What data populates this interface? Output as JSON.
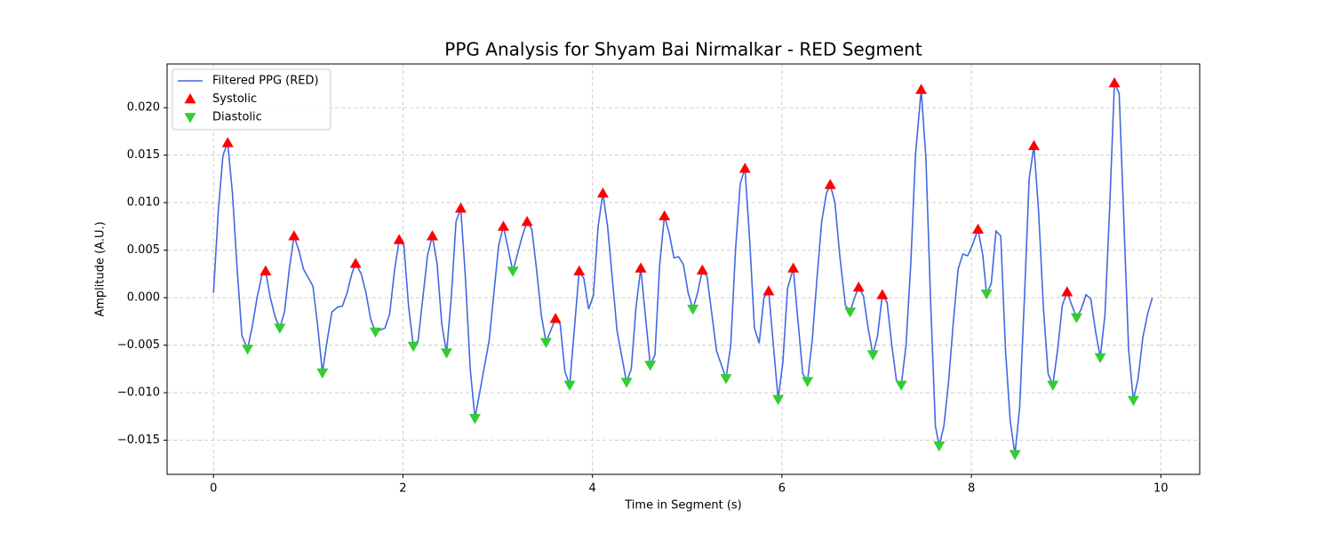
{
  "chart_data": {
    "type": "line",
    "title": "PPG Analysis for Shyam Bai Nirmalkar - RED Segment",
    "x_label": "Time in Segment (s)",
    "y_label": "Amplitude (A.U.)",
    "xlim": [
      -0.49,
      10.41
    ],
    "ylim": [
      -0.0186,
      0.0246
    ],
    "xticks": [
      0,
      2,
      4,
      6,
      8,
      10
    ],
    "yticks": [
      {
        "value": -0.015,
        "label": "−0.015"
      },
      {
        "value": -0.01,
        "label": "−0.010"
      },
      {
        "value": -0.005,
        "label": "−0.005"
      },
      {
        "value": 0,
        "label": "0.000"
      },
      {
        "value": 0.005,
        "label": "0.005"
      },
      {
        "value": 0.01,
        "label": "0.010"
      },
      {
        "value": 0.015,
        "label": "0.015"
      },
      {
        "value": 0.02,
        "label": "0.020"
      }
    ],
    "grid": true,
    "legend": "upper left",
    "series": [
      {
        "name": "Filtered PPG (RED)",
        "color": "#4169e1",
        "marker": "line",
        "x": [
          0,
          0.05,
          0.1,
          0.15,
          0.2,
          0.25,
          0.3,
          0.36,
          0.41,
          0.46,
          0.51,
          0.55,
          0.6,
          0.65,
          0.7,
          0.75,
          0.8,
          0.85,
          0.9,
          0.95,
          1.05,
          1.1,
          1.15,
          1.2,
          1.25,
          1.31,
          1.36,
          1.41,
          1.46,
          1.5,
          1.56,
          1.61,
          1.66,
          1.71,
          1.76,
          1.81,
          1.86,
          1.91,
          1.96,
          2.01,
          2.06,
          2.11,
          2.16,
          2.21,
          2.26,
          2.31,
          2.36,
          2.41,
          2.46,
          2.51,
          2.56,
          2.61,
          2.66,
          2.71,
          2.76,
          2.91,
          3.01,
          3.06,
          3.16,
          3.26,
          3.31,
          3.36,
          3.41,
          3.46,
          3.51,
          3.61,
          3.66,
          3.71,
          3.76,
          3.86,
          3.91,
          3.96,
          4.01,
          4.06,
          4.11,
          4.16,
          4.26,
          4.36,
          4.41,
          4.46,
          4.51,
          4.56,
          4.61,
          4.66,
          4.71,
          4.76,
          4.81,
          4.86,
          4.91,
          4.96,
          5.01,
          5.06,
          5.11,
          5.16,
          5.21,
          5.31,
          5.41,
          5.46,
          5.51,
          5.56,
          5.61,
          5.66,
          5.71,
          5.76,
          5.81,
          5.86,
          5.96,
          6.01,
          6.06,
          6.12,
          6.17,
          6.22,
          6.27,
          6.32,
          6.37,
          6.42,
          6.47,
          6.51,
          6.56,
          6.61,
          6.67,
          6.72,
          6.76,
          6.81,
          6.86,
          6.91,
          6.96,
          7.01,
          7.06,
          7.11,
          7.16,
          7.21,
          7.26,
          7.31,
          7.36,
          7.41,
          7.47,
          7.52,
          7.57,
          7.62,
          7.66,
          7.71,
          7.76,
          7.81,
          7.86,
          7.91,
          7.96,
          8.01,
          8.07,
          8.12,
          8.16,
          8.21,
          8.26,
          8.31,
          8.36,
          8.41,
          8.46,
          8.51,
          8.56,
          8.61,
          8.66,
          8.71,
          8.76,
          8.81,
          8.86,
          8.91,
          8.96,
          9.01,
          9.06,
          9.11,
          9.16,
          9.21,
          9.26,
          9.31,
          9.36,
          9.41,
          9.46,
          9.51,
          9.56,
          9.61,
          9.66,
          9.71,
          9.76,
          9.81,
          9.86,
          9.91
        ],
        "values": [
          0.0005,
          0.009,
          0.015,
          0.0163,
          0.011,
          0.003,
          -0.004,
          -0.0054,
          -0.003,
          0,
          0.0023,
          0.0028,
          0,
          -0.002,
          -0.0032,
          -0.0015,
          0.003,
          0.0065,
          0.005,
          0.003,
          0.0012,
          -0.003,
          -0.0079,
          -0.0045,
          -0.0015,
          -0.001,
          -0.0009,
          0.0005,
          0.0025,
          0.0036,
          0.0025,
          0.0005,
          -0.0023,
          -0.0036,
          -0.0034,
          -0.0032,
          -0.0017,
          0.0028,
          0.0061,
          0.0055,
          -0.001,
          -0.0051,
          -0.0045,
          0,
          0.0045,
          0.0065,
          0.0036,
          -0.0028,
          -0.0058,
          0,
          0.008,
          0.0094,
          0.002,
          -0.0075,
          -0.0127,
          -0.0045,
          0.0055,
          0.0075,
          0.0028,
          0.0065,
          0.008,
          0.0072,
          0.003,
          -0.0018,
          -0.0047,
          -0.0022,
          -0.0028,
          -0.0078,
          -0.0092,
          0.0028,
          0.002,
          -0.0012,
          0.0002,
          0.0075,
          0.011,
          0.0075,
          -0.0035,
          -0.0089,
          -0.0075,
          -0.001,
          0.0031,
          -0.002,
          -0.0071,
          -0.006,
          0.0035,
          0.0086,
          0.0068,
          0.0042,
          0.0043,
          0.0035,
          0.0005,
          -0.0012,
          0.0005,
          0.0029,
          0.0022,
          -0.0056,
          -0.0085,
          -0.005,
          0.005,
          0.012,
          0.0136,
          0.006,
          -0.0032,
          -0.0048,
          0,
          0.0007,
          -0.0107,
          -0.0068,
          0.001,
          0.0031,
          -0.0025,
          -0.008,
          -0.0088,
          -0.0045,
          0.002,
          0.008,
          0.011,
          0.0119,
          0.01,
          0.0045,
          -0.0008,
          -0.0015,
          -0.0002,
          0.0011,
          0.0002,
          -0.0032,
          -0.006,
          -0.004,
          0.0003,
          -0.0005,
          -0.005,
          -0.0088,
          -0.0092,
          -0.005,
          0.0035,
          0.015,
          0.0219,
          0.0147,
          -0.0005,
          -0.0135,
          -0.0156,
          -0.0135,
          -0.0088,
          -0.0025,
          0.003,
          0.0046,
          0.0044,
          0.0055,
          0.0072,
          0.0045,
          0.0004,
          0.0015,
          0.007,
          0.0065,
          -0.0055,
          -0.013,
          -0.0165,
          -0.0115,
          0,
          0.0125,
          0.016,
          0.009,
          -0.001,
          -0.008,
          -0.0092,
          -0.0055,
          -0.0008,
          0.0006,
          -0.0008,
          -0.0021,
          -0.0012,
          0.0003,
          -0.0001,
          -0.0035,
          -0.0063,
          -0.0018,
          0.0095,
          0.0226,
          0.0215,
          0.008,
          -0.0055,
          -0.0108,
          -0.0085,
          -0.0042,
          -0.0017,
          0
        ]
      },
      {
        "name": "Systolic",
        "color": "#ff0000",
        "marker": "triangle-up",
        "x": [
          0.15,
          0.55,
          0.85,
          1.5,
          1.96,
          2.31,
          2.61,
          3.06,
          3.31,
          3.61,
          3.86,
          4.11,
          4.51,
          4.76,
          5.16,
          5.61,
          5.86,
          6.12,
          6.51,
          6.81,
          7.06,
          7.47,
          8.07,
          8.66,
          9.01,
          9.51
        ],
        "values": [
          0.0163,
          0.0028,
          0.0065,
          0.0036,
          0.0061,
          0.0065,
          0.0094,
          0.0075,
          0.008,
          -0.0022,
          0.0028,
          0.011,
          0.0031,
          0.0086,
          0.0029,
          0.0136,
          0.0007,
          0.0031,
          0.0119,
          0.0011,
          0.0003,
          0.0219,
          0.0072,
          0.016,
          0.0006,
          0.0226
        ]
      },
      {
        "name": "Diastolic",
        "color": "#32cd32",
        "marker": "triangle-down",
        "x": [
          0.36,
          0.7,
          1.15,
          1.71,
          2.11,
          2.46,
          2.76,
          3.16,
          3.51,
          3.76,
          4.36,
          4.61,
          5.06,
          5.41,
          5.96,
          6.27,
          6.72,
          6.96,
          7.26,
          7.66,
          8.16,
          8.46,
          8.86,
          9.11,
          9.36,
          9.71
        ],
        "values": [
          -0.0054,
          -0.0032,
          -0.0079,
          -0.0036,
          -0.0051,
          -0.0058,
          -0.0127,
          0.0028,
          -0.0047,
          -0.0092,
          -0.0089,
          -0.0071,
          -0.0012,
          -0.0085,
          -0.0107,
          -0.0088,
          -0.0015,
          -0.006,
          -0.0092,
          -0.0156,
          0.0004,
          -0.0165,
          -0.0092,
          -0.0021,
          -0.0063,
          -0.0108
        ]
      }
    ]
  }
}
